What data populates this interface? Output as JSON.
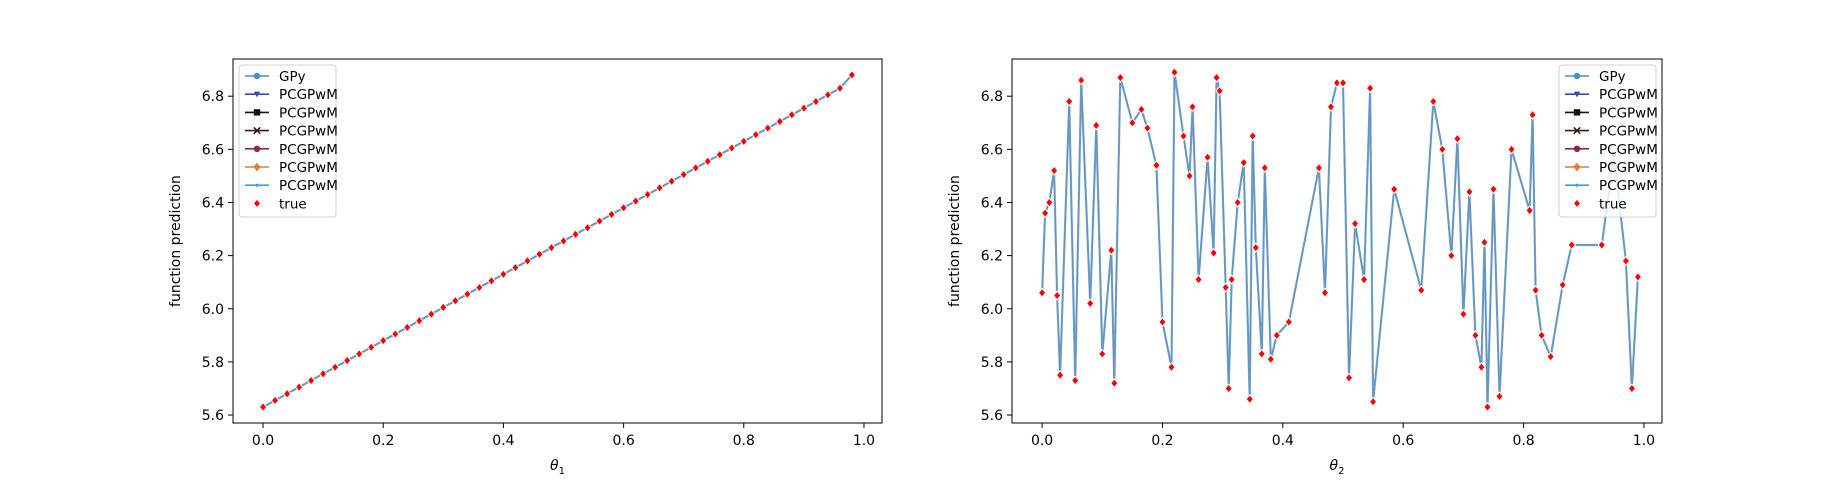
{
  "chart_data": [
    {
      "type": "line",
      "xlabel": "θ",
      "xlabel_sub": "1",
      "ylabel": "function prediction",
      "xlim": [
        -0.05,
        1.03
      ],
      "ylim": [
        5.57,
        6.94
      ],
      "xticks": [
        "0.0",
        "0.2",
        "0.4",
        "0.6",
        "0.8",
        "1.0"
      ],
      "yticks": [
        "5.6",
        "5.8",
        "6.0",
        "6.2",
        "6.4",
        "6.6",
        "6.8"
      ],
      "legend_position": "upper-left",
      "grid": false,
      "series": [
        {
          "name": "GPy",
          "color": "#4c8fc0",
          "marker": "circle"
        },
        {
          "name": "PCGPwM",
          "color": "#3a4ba8",
          "marker": "triangle-down"
        },
        {
          "name": "PCGPwM",
          "color": "#111111",
          "marker": "square"
        },
        {
          "name": "PCGPwM",
          "color": "#3d1a1a",
          "marker": "x"
        },
        {
          "name": "PCGPwM",
          "color": "#8c2a3a",
          "marker": "circle"
        },
        {
          "name": "PCGPwM",
          "color": "#e07b39",
          "marker": "diamond"
        },
        {
          "name": "PCGPwM",
          "color": "#3aa0d8",
          "marker": "point"
        },
        {
          "name": "true",
          "color": "#ff0000",
          "marker": "diamond"
        }
      ],
      "x": [
        0.0,
        0.02,
        0.04,
        0.06,
        0.08,
        0.1,
        0.12,
        0.14,
        0.16,
        0.18,
        0.2,
        0.22,
        0.24,
        0.26,
        0.28,
        0.3,
        0.32,
        0.34,
        0.36,
        0.38,
        0.4,
        0.42,
        0.44,
        0.46,
        0.48,
        0.5,
        0.52,
        0.54,
        0.56,
        0.58,
        0.6,
        0.62,
        0.64,
        0.66,
        0.68,
        0.7,
        0.72,
        0.74,
        0.76,
        0.78,
        0.8,
        0.82,
        0.84,
        0.86,
        0.88,
        0.9,
        0.92,
        0.94,
        0.96,
        0.98
      ],
      "y": [
        5.63,
        5.655,
        5.68,
        5.705,
        5.73,
        5.755,
        5.78,
        5.805,
        5.83,
        5.855,
        5.88,
        5.905,
        5.93,
        5.955,
        5.98,
        6.005,
        6.03,
        6.055,
        6.08,
        6.105,
        6.13,
        6.155,
        6.18,
        6.205,
        6.23,
        6.255,
        6.28,
        6.305,
        6.33,
        6.355,
        6.38,
        6.405,
        6.43,
        6.455,
        6.48,
        6.505,
        6.53,
        6.555,
        6.58,
        6.605,
        6.63,
        6.655,
        6.68,
        6.705,
        6.73,
        6.755,
        6.78,
        6.805,
        6.83,
        6.88
      ]
    },
    {
      "type": "line",
      "xlabel": "θ",
      "xlabel_sub": "2",
      "ylabel": "function prediction",
      "xlim": [
        -0.05,
        1.03
      ],
      "ylim": [
        5.57,
        6.94
      ],
      "xticks": [
        "0.0",
        "0.2",
        "0.4",
        "0.6",
        "0.8",
        "1.0"
      ],
      "yticks": [
        "5.6",
        "5.8",
        "6.0",
        "6.2",
        "6.4",
        "6.6",
        "6.8"
      ],
      "legend_position": "upper-right",
      "grid": false,
      "series": [
        {
          "name": "GPy",
          "color": "#4c8fc0",
          "marker": "circle"
        },
        {
          "name": "PCGPwM",
          "color": "#3a4ba8",
          "marker": "triangle-down"
        },
        {
          "name": "PCGPwM",
          "color": "#111111",
          "marker": "square"
        },
        {
          "name": "PCGPwM",
          "color": "#3d1a1a",
          "marker": "x"
        },
        {
          "name": "PCGPwM",
          "color": "#8c2a3a",
          "marker": "circle"
        },
        {
          "name": "PCGPwM",
          "color": "#e07b39",
          "marker": "diamond"
        },
        {
          "name": "PCGPwM",
          "color": "#3aa0d8",
          "marker": "point"
        },
        {
          "name": "true",
          "color": "#ff0000",
          "marker": "diamond"
        }
      ],
      "x": [
        0.0,
        0.005,
        0.012,
        0.02,
        0.025,
        0.03,
        0.045,
        0.055,
        0.065,
        0.08,
        0.09,
        0.1,
        0.115,
        0.12,
        0.13,
        0.15,
        0.165,
        0.175,
        0.19,
        0.2,
        0.215,
        0.22,
        0.235,
        0.245,
        0.25,
        0.26,
        0.275,
        0.285,
        0.29,
        0.295,
        0.305,
        0.31,
        0.315,
        0.325,
        0.335,
        0.345,
        0.35,
        0.355,
        0.365,
        0.37,
        0.38,
        0.39,
        0.41,
        0.46,
        0.47,
        0.48,
        0.49,
        0.5,
        0.51,
        0.52,
        0.535,
        0.545,
        0.55,
        0.585,
        0.63,
        0.65,
        0.665,
        0.68,
        0.69,
        0.7,
        0.71,
        0.72,
        0.73,
        0.735,
        0.74,
        0.75,
        0.76,
        0.78,
        0.81,
        0.815,
        0.82,
        0.83,
        0.845,
        0.865,
        0.88,
        0.93,
        0.95,
        0.97,
        0.98,
        0.99
      ],
      "y": [
        6.06,
        6.36,
        6.4,
        6.52,
        6.05,
        5.75,
        6.78,
        5.73,
        6.86,
        6.02,
        6.69,
        5.83,
        6.22,
        5.72,
        6.87,
        6.7,
        6.75,
        6.68,
        6.54,
        5.95,
        5.78,
        6.89,
        6.65,
        6.5,
        6.76,
        6.11,
        6.57,
        6.21,
        6.87,
        6.82,
        6.08,
        5.7,
        6.11,
        6.4,
        6.55,
        5.66,
        6.65,
        6.23,
        5.83,
        6.53,
        5.81,
        5.9,
        5.95,
        6.53,
        6.06,
        6.76,
        6.85,
        6.85,
        5.74,
        6.32,
        6.11,
        6.83,
        5.65,
        6.45,
        6.07,
        6.78,
        6.6,
        6.2,
        6.64,
        5.98,
        6.44,
        5.9,
        5.78,
        6.25,
        5.63,
        6.45,
        5.67,
        6.6,
        6.37,
        6.73,
        6.07,
        5.9,
        5.82,
        6.09,
        6.24,
        6.24,
        6.58,
        6.18,
        5.7,
        6.12
      ]
    }
  ]
}
